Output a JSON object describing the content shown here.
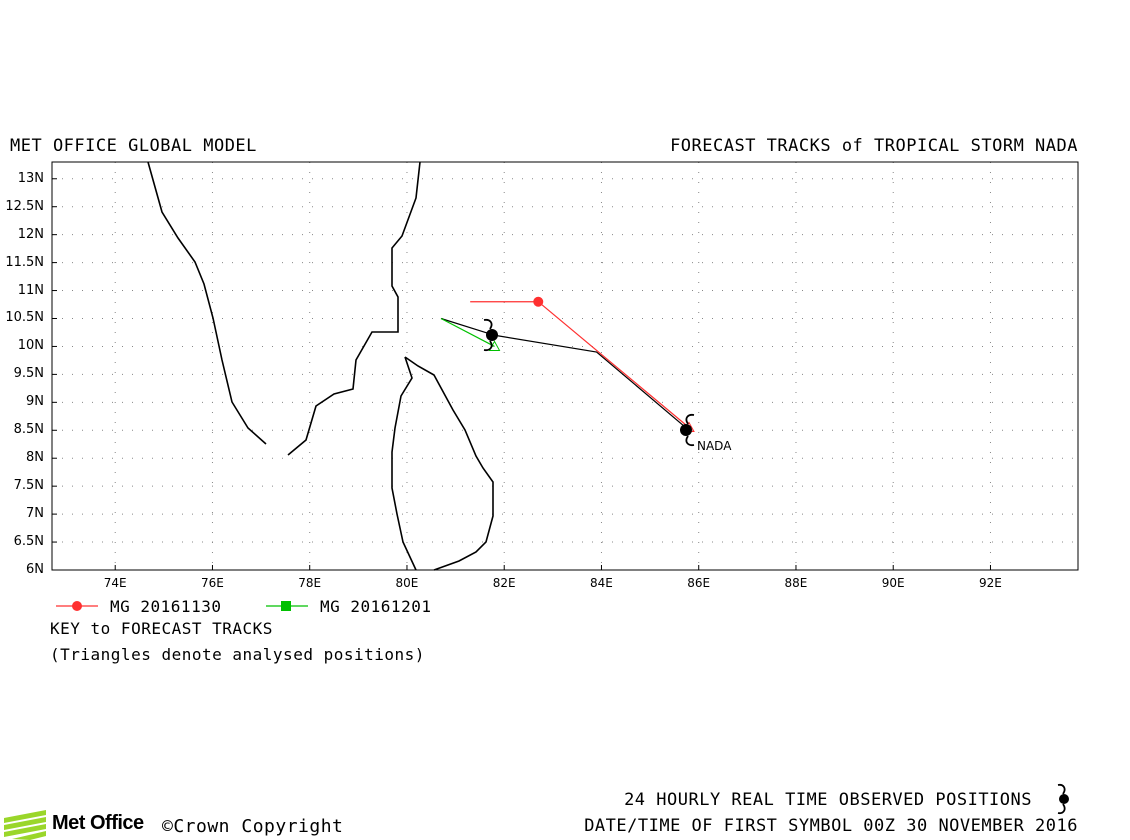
{
  "header": {
    "left_title": "MET OFFICE GLOBAL MODEL",
    "right_title": "FORECAST TRACKS of TROPICAL STORM NADA"
  },
  "map": {
    "lon_range": [
      72.7,
      93.8
    ],
    "lat_range": [
      6.0,
      13.3
    ],
    "lat_ticks": [
      "13N",
      "12.5N",
      "12N",
      "11.5N",
      "11N",
      "10.5N",
      "10N",
      "9.5N",
      "9N",
      "8.5N",
      "8N",
      "7.5N",
      "7N",
      "6.5N",
      "6N"
    ],
    "lon_ticks": [
      "74E",
      "76E",
      "78E",
      "80E",
      "82E",
      "84E",
      "86E",
      "88E",
      "90E",
      "92E"
    ],
    "grid": "dotted",
    "storm_label": "NADA"
  },
  "tracks": [
    {
      "name": "MG 20161130",
      "color": "#ff3030",
      "points": [
        {
          "lon": 85.8,
          "lat": 8.55
        },
        {
          "lon": 82.7,
          "lat": 10.8
        },
        {
          "lon": 81.3,
          "lat": 10.8
        }
      ]
    },
    {
      "name": "MG 20161201",
      "color": "#00c000",
      "points": [
        {
          "lon": 81.8,
          "lat": 10.0
        },
        {
          "lon": 80.7,
          "lat": 10.5
        }
      ]
    }
  ],
  "observed_track": {
    "color": "#000000",
    "points": [
      {
        "lon": 85.8,
        "lat": 8.5
      },
      {
        "lon": 83.9,
        "lat": 9.9
      },
      {
        "lon": 81.8,
        "lat": 10.2
      },
      {
        "lon": 80.7,
        "lat": 10.5
      }
    ]
  },
  "legend": {
    "key_title": "KEY to FORECAST TRACKS",
    "note": "(Triangles denote analysed positions)"
  },
  "footer": {
    "observed_line": "24 HOURLY REAL TIME OBSERVED POSITIONS",
    "datetime_line": "DATE/TIME OF FIRST SYMBOL 00Z 30 NOVEMBER 2016",
    "logo_text": "Met Office",
    "copyright": "©Crown Copyright",
    "logo_color": "#9ad62a"
  }
}
